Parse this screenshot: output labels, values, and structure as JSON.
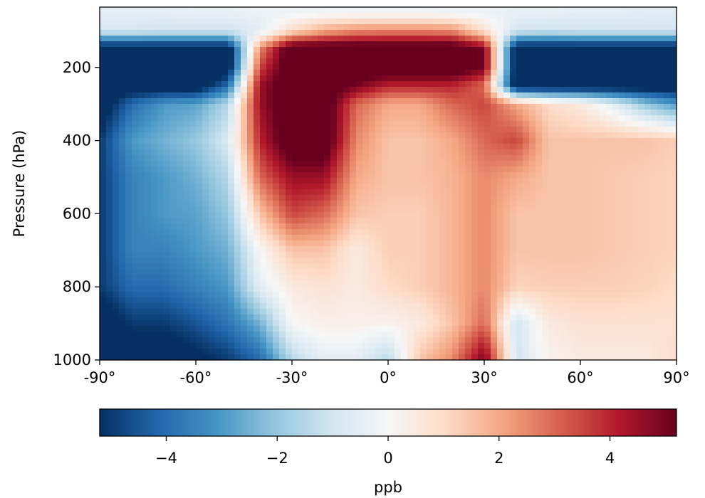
{
  "chart_data": {
    "type": "heatmap",
    "title": "",
    "xlabel": "",
    "ylabel": "Pressure (hPa)",
    "xlim": [
      -90,
      90
    ],
    "ylim": [
      1000,
      35
    ],
    "x_ticks": [
      {
        "value": -90,
        "label": "-90°"
      },
      {
        "value": -60,
        "label": "-60°"
      },
      {
        "value": -30,
        "label": "-30°"
      },
      {
        "value": 0,
        "label": "0°"
      },
      {
        "value": 30,
        "label": "30°"
      },
      {
        "value": 60,
        "label": "60°"
      },
      {
        "value": 90,
        "label": "90°"
      }
    ],
    "y_ticks": [
      {
        "value": 200,
        "label": "200"
      },
      {
        "value": 400,
        "label": "400"
      },
      {
        "value": 600,
        "label": "600"
      },
      {
        "value": 800,
        "label": "800"
      },
      {
        "value": 1000,
        "label": "1000"
      }
    ],
    "colormap": "RdBu_r",
    "color_range": [
      -5.2,
      5.2
    ],
    "grid": false,
    "colorbar": {
      "label": "ppb",
      "orientation": "horizontal",
      "placement": "bottom",
      "ticks": [
        {
          "value": -4,
          "label": "−4"
        },
        {
          "value": -2,
          "label": "−2"
        },
        {
          "value": 0,
          "label": "0"
        },
        {
          "value": 2,
          "label": "2"
        },
        {
          "value": 4,
          "label": "4"
        }
      ]
    },
    "latitudes": [
      -90,
      -80,
      -70,
      -60,
      -50,
      -40,
      -30,
      -20,
      -10,
      0,
      10,
      20,
      30,
      40,
      50,
      60,
      70,
      80,
      90
    ],
    "pressures": [
      50,
      100,
      150,
      200,
      250,
      300,
      400,
      500,
      600,
      700,
      800,
      900,
      1000
    ],
    "values": [
      [
        -0.5,
        -0.5,
        -0.5,
        -0.4,
        -0.4,
        -0.3,
        -0.3,
        -0.2,
        -0.2,
        -0.2,
        -0.2,
        -0.3,
        -0.3,
        -0.4,
        -0.4,
        -0.5,
        -0.5,
        -0.6,
        -0.6
      ],
      [
        -0.9,
        -0.9,
        -1.0,
        -1.0,
        -1.0,
        -0.6,
        1.0,
        2.0,
        2.5,
        2.6,
        2.6,
        2.5,
        0.8,
        -1.0,
        -1.1,
        -1.0,
        -1.0,
        -1.0,
        -1.0
      ],
      [
        -6,
        -6,
        -6,
        -6,
        -6,
        2.5,
        6,
        6,
        6,
        6,
        6,
        6,
        5,
        -6,
        -6,
        -6,
        -6,
        -6,
        -6
      ],
      [
        -6,
        -6,
        -6,
        -6,
        -6,
        3.5,
        6,
        6,
        6,
        6,
        6,
        6,
        5,
        -6,
        -6,
        -6,
        -6,
        -6,
        -6
      ],
      [
        -6,
        -6,
        -6,
        -6,
        -4,
        4.5,
        6,
        6,
        5,
        4,
        4,
        4,
        3,
        -6,
        -6,
        -6,
        -6,
        -6,
        -6
      ],
      [
        -6,
        -4,
        -3,
        -2.8,
        -1.5,
        4.5,
        6,
        6,
        3,
        2,
        2,
        3,
        3.5,
        2,
        1,
        0.5,
        -0.5,
        -2,
        -3
      ],
      [
        -5,
        -3,
        -2.5,
        -2,
        -0.8,
        4,
        6,
        6,
        2.5,
        1.5,
        1.5,
        2,
        3,
        3.5,
        1.5,
        1.5,
        1.5,
        1.5,
        1.3
      ],
      [
        -5,
        -3.5,
        -3,
        -2.5,
        -1.5,
        3,
        4.5,
        4.5,
        2,
        1.5,
        1.5,
        1.8,
        2.5,
        2,
        1.5,
        1.5,
        1.4,
        1.3,
        1.2
      ],
      [
        -5,
        -3.5,
        -3,
        -2.8,
        -2,
        1.5,
        3.5,
        3,
        1.5,
        1.3,
        1.3,
        1.8,
        2.5,
        1.5,
        1.5,
        1.5,
        1.4,
        1.3,
        1.2
      ],
      [
        -5,
        -3.5,
        -3.5,
        -3,
        -2.5,
        0,
        1.5,
        1.5,
        0.5,
        1.3,
        1.3,
        1.8,
        2.5,
        1.5,
        1.5,
        1.5,
        1.4,
        1.3,
        1.2
      ],
      [
        -5,
        -4,
        -4,
        -3.5,
        -3,
        -0.5,
        0.5,
        0.8,
        0.5,
        1.0,
        1.3,
        1.8,
        2.5,
        1.2,
        1.3,
        1.3,
        1.3,
        1.2,
        1.0
      ],
      [
        -6,
        -5,
        -5,
        -4.5,
        -3.8,
        -2.5,
        0,
        0.3,
        0.3,
        0.2,
        0.5,
        1.5,
        3,
        -1.0,
        0.5,
        0.8,
        0.8,
        0.8,
        0.8
      ],
      [
        -6,
        -6,
        -6,
        -5.5,
        -5,
        -4,
        -1.5,
        -0.5,
        -0.5,
        -1.5,
        1.5,
        2.5,
        5,
        -1.0,
        0.2,
        0.5,
        0.5,
        0.5,
        1.0
      ]
    ]
  }
}
